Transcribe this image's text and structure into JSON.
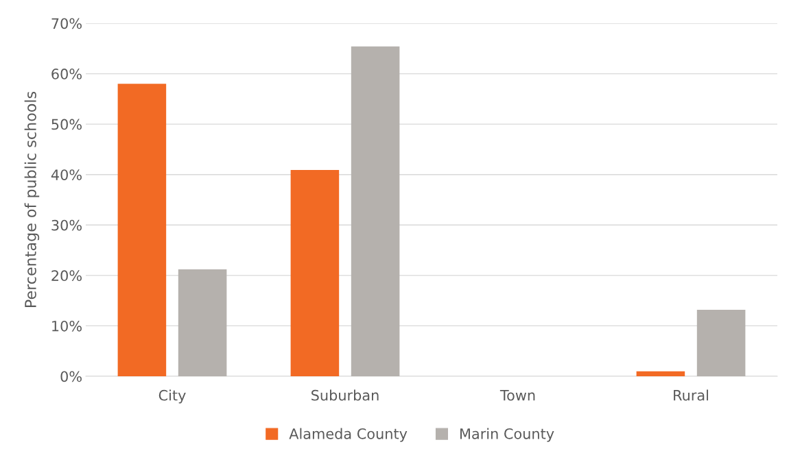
{
  "chart_data": {
    "type": "bar",
    "ylabel": "Percentage of public schools",
    "categories": [
      "City",
      "Suburban",
      "Town",
      "Rural"
    ],
    "series": [
      {
        "name": "Alameda County",
        "color": "#f26a24",
        "values": [
          58,
          40.9,
          0,
          1
        ]
      },
      {
        "name": "Marin County",
        "color": "#b5b1ad",
        "values": [
          21.2,
          65.4,
          0,
          13.2
        ]
      }
    ],
    "ylim": [
      0,
      70
    ],
    "yticks": [
      {
        "value": 0,
        "label": "0%"
      },
      {
        "value": 10,
        "label": "10%"
      },
      {
        "value": 20,
        "label": "20%"
      },
      {
        "value": 30,
        "label": "30%"
      },
      {
        "value": 40,
        "label": "40%"
      },
      {
        "value": 50,
        "label": "50%"
      },
      {
        "value": 60,
        "label": "60%"
      },
      {
        "value": 70,
        "label": "70%"
      }
    ],
    "grid": "y",
    "legend": "bottom"
  }
}
